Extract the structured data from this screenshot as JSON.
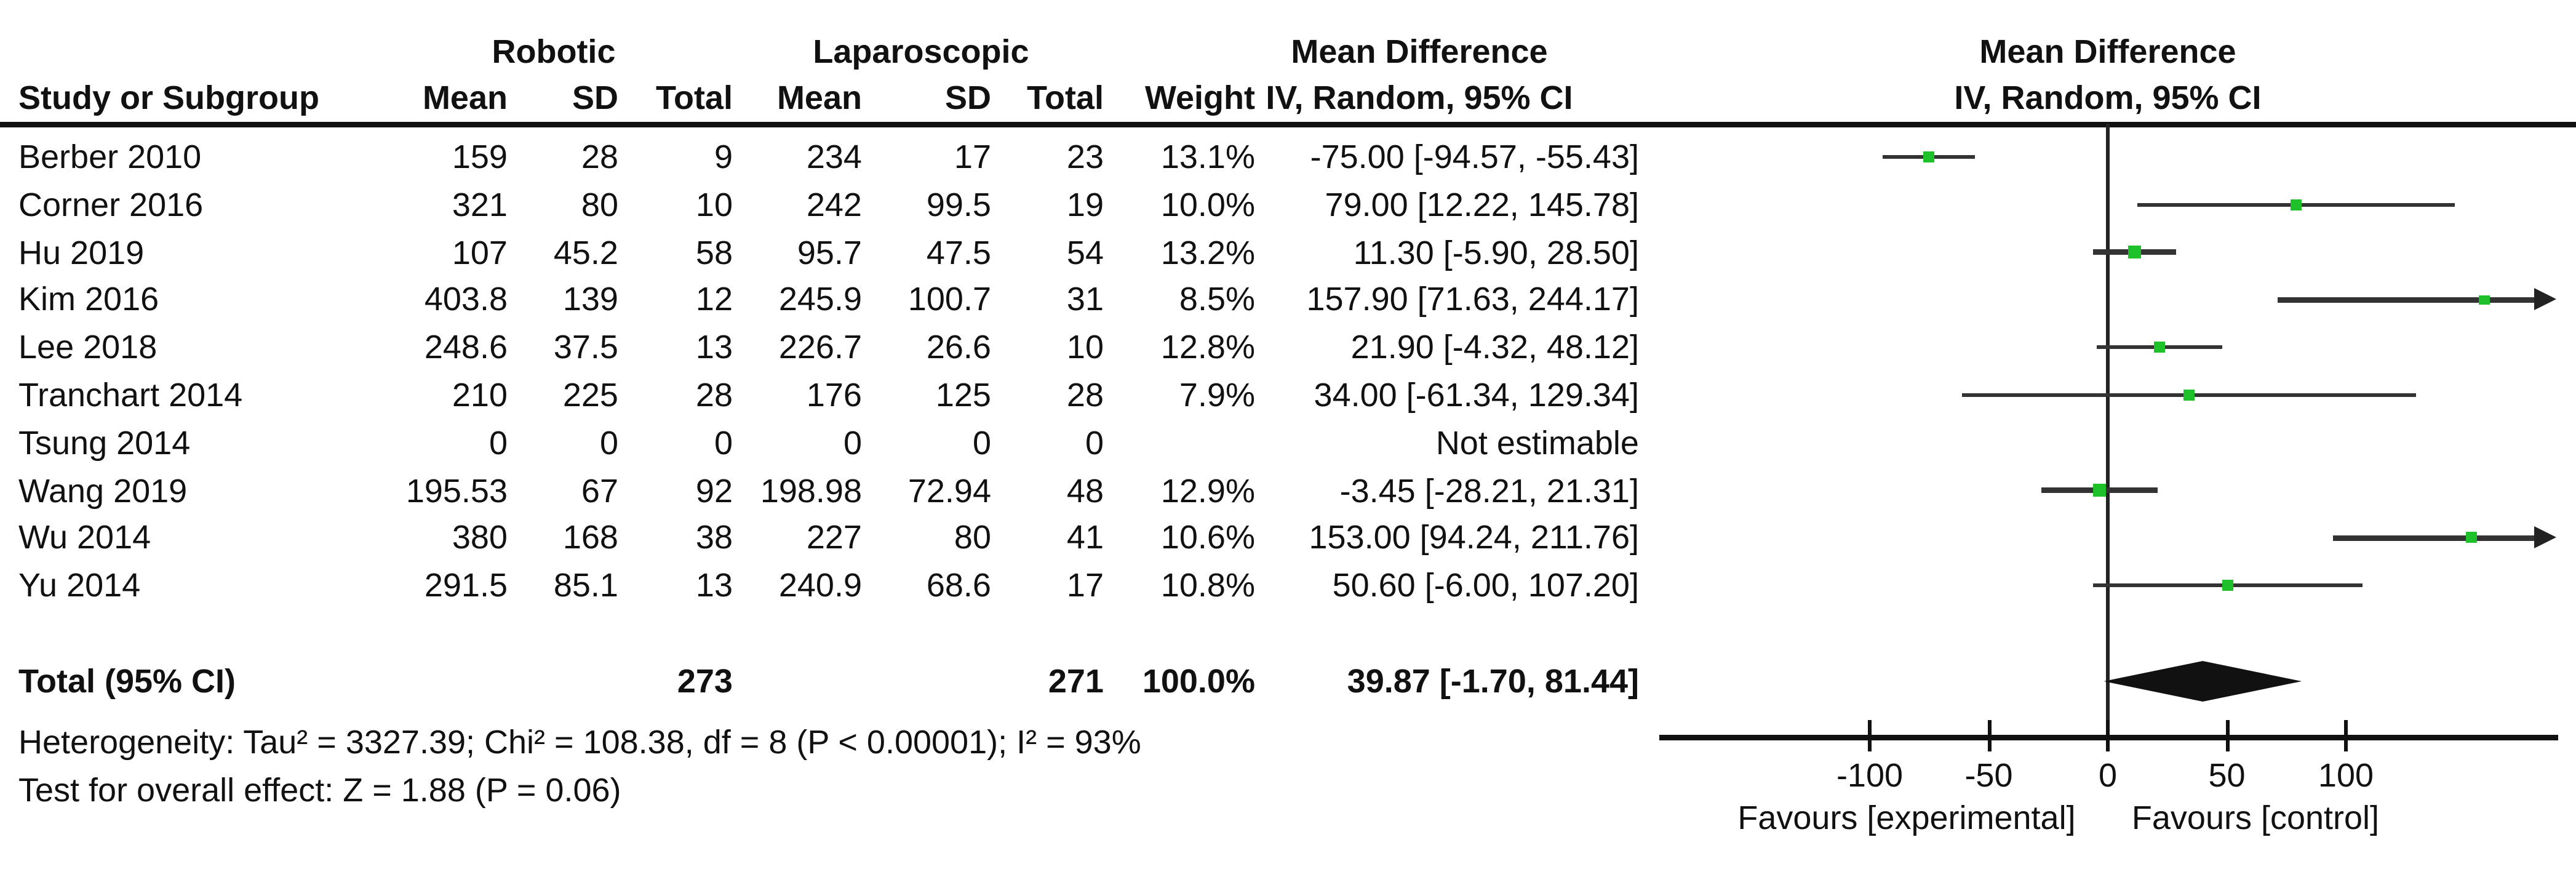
{
  "figure": {
    "kind": "RevMan-style forest plot, Mean Difference (IV, Random, 95% CI), Robotic vs Laparoscopic"
  },
  "chart_data": {
    "type": "forest",
    "effect_measure": "Mean Difference",
    "method": "IV, Random, 95% CI",
    "header": {
      "group1": "Robotic",
      "group2": "Laparoscopic",
      "col_study": "Study or Subgroup",
      "col_mean": "Mean",
      "col_sd": "SD",
      "col_total": "Total",
      "col_weight": "Weight",
      "effect_line1": "Mean Difference",
      "effect_line2": "IV, Random, 95% CI"
    },
    "studies": [
      {
        "label": "Berber 2010",
        "mean1": "159",
        "sd1": "28",
        "n1": "9",
        "mean2": "234",
        "sd2": "17",
        "n2": "23",
        "weight": "13.1%",
        "w": 13.1,
        "ci_text": "-75.00 [-94.57, -55.43]",
        "est": -75.0,
        "lo": -94.57,
        "hi": -55.43
      },
      {
        "label": "Corner 2016",
        "mean1": "321",
        "sd1": "80",
        "n1": "10",
        "mean2": "242",
        "sd2": "99.5",
        "n2": "19",
        "weight": "10.0%",
        "w": 10.0,
        "ci_text": "79.00 [12.22, 145.78]",
        "est": 79.0,
        "lo": 12.22,
        "hi": 145.78
      },
      {
        "label": "Hu 2019",
        "mean1": "107",
        "sd1": "45.2",
        "n1": "58",
        "mean2": "95.7",
        "sd2": "47.5",
        "n2": "54",
        "weight": "13.2%",
        "w": 13.2,
        "ci_text": "11.30 [-5.90, 28.50]",
        "est": 11.3,
        "lo": -5.9,
        "hi": 28.5
      },
      {
        "label": "Kim 2016",
        "mean1": "403.8",
        "sd1": "139",
        "n1": "12",
        "mean2": "245.9",
        "sd2": "100.7",
        "n2": "31",
        "weight": "8.5%",
        "w": 8.5,
        "ci_text": "157.90 [71.63, 244.17]",
        "est": 157.9,
        "lo": 71.63,
        "hi": 244.17
      },
      {
        "label": "Lee 2018",
        "mean1": "248.6",
        "sd1": "37.5",
        "n1": "13",
        "mean2": "226.7",
        "sd2": "26.6",
        "n2": "10",
        "weight": "12.8%",
        "w": 12.8,
        "ci_text": "21.90 [-4.32, 48.12]",
        "est": 21.9,
        "lo": -4.32,
        "hi": 48.12
      },
      {
        "label": "Tranchart 2014",
        "mean1": "210",
        "sd1": "225",
        "n1": "28",
        "mean2": "176",
        "sd2": "125",
        "n2": "28",
        "weight": "7.9%",
        "w": 7.9,
        "ci_text": "34.00 [-61.34, 129.34]",
        "est": 34.0,
        "lo": -61.34,
        "hi": 129.34
      },
      {
        "label": "Tsung 2014",
        "mean1": "0",
        "sd1": "0",
        "n1": "0",
        "mean2": "0",
        "sd2": "0",
        "n2": "0",
        "weight": "",
        "w": null,
        "ci_text": "Not estimable",
        "est": null,
        "lo": null,
        "hi": null
      },
      {
        "label": "Wang 2019",
        "mean1": "195.53",
        "sd1": "67",
        "n1": "92",
        "mean2": "198.98",
        "sd2": "72.94",
        "n2": "48",
        "weight": "12.9%",
        "w": 12.9,
        "ci_text": "-3.45 [-28.21, 21.31]",
        "est": -3.45,
        "lo": -28.21,
        "hi": 21.31
      },
      {
        "label": "Wu 2014",
        "mean1": "380",
        "sd1": "168",
        "n1": "38",
        "mean2": "227",
        "sd2": "80",
        "n2": "41",
        "weight": "10.6%",
        "w": 10.6,
        "ci_text": "153.00 [94.24, 211.76]",
        "est": 153.0,
        "lo": 94.24,
        "hi": 211.76
      },
      {
        "label": "Yu 2014",
        "mean1": "291.5",
        "sd1": "85.1",
        "n1": "13",
        "mean2": "240.9",
        "sd2": "68.6",
        "n2": "17",
        "weight": "10.8%",
        "w": 10.8,
        "ci_text": "50.60 [-6.00, 107.20]",
        "est": 50.6,
        "lo": -6.0,
        "hi": 107.2
      }
    ],
    "total": {
      "label": "Total (95% CI)",
      "n1": "273",
      "n2": "271",
      "weight": "100.0%",
      "ci_text": "39.87 [-1.70, 81.44]",
      "est": 39.87,
      "lo": -1.7,
      "hi": 81.44
    },
    "heterogeneity": "Heterogeneity: Tau² = 3327.39; Chi² = 108.38, df = 8 (P < 0.00001); I² = 93%",
    "overall_effect": "Test for overall effect: Z = 1.88 (P = 0.06)",
    "axis": {
      "ticks": [
        -100,
        -50,
        0,
        50,
        100
      ],
      "min": -188,
      "max": 188,
      "favours_left": "Favours [experimental]",
      "favours_right": "Favours [control]"
    },
    "colors": {
      "marker_green": "#1FC12B",
      "line_dark": "#333333",
      "text": "#111111"
    }
  }
}
